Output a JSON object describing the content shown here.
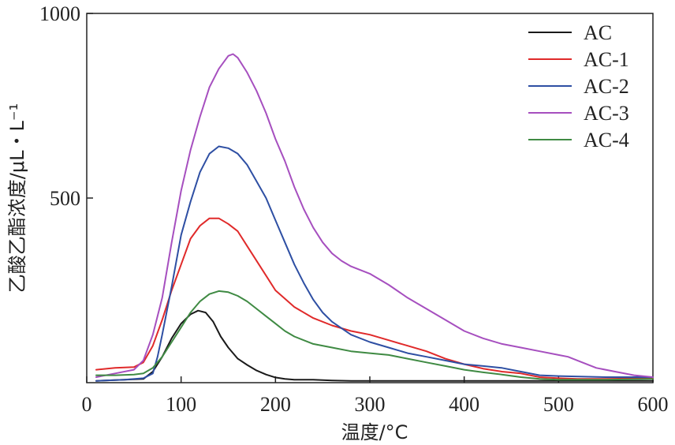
{
  "chart_data": {
    "type": "line",
    "title": "",
    "xlabel": "温度/°C",
    "ylabel": "乙酸乙酯浓度/μL・L⁻¹",
    "xlim": [
      0,
      600
    ],
    "ylim": [
      0,
      1000
    ],
    "x_ticks": [
      "0",
      "100",
      "200",
      "300",
      "400",
      "500",
      "600"
    ],
    "y_ticks": [
      "500",
      "1000"
    ],
    "grid": false,
    "legend_position": "top-right",
    "series": [
      {
        "name": "AC",
        "color": "#1a1a1a",
        "x": [
          10,
          40,
          60,
          70,
          80,
          90,
          100,
          110,
          118,
          126,
          134,
          142,
          150,
          160,
          170,
          180,
          190,
          200,
          210,
          220,
          240,
          260,
          280,
          300,
          350,
          400,
          450,
          500,
          550,
          600
        ],
        "y": [
          5,
          8,
          10,
          30,
          70,
          120,
          160,
          185,
          195,
          190,
          165,
          125,
          95,
          65,
          48,
          33,
          22,
          14,
          10,
          8,
          8,
          6,
          5,
          5,
          5,
          5,
          5,
          5,
          5,
          5
        ]
      },
      {
        "name": "AC-1",
        "color": "#e02a2a",
        "x": [
          10,
          30,
          50,
          60,
          70,
          80,
          90,
          100,
          110,
          120,
          130,
          140,
          150,
          160,
          170,
          180,
          190,
          200,
          220,
          240,
          260,
          280,
          300,
          320,
          340,
          360,
          380,
          400,
          420,
          440,
          460,
          480,
          500,
          520,
          550,
          600
        ],
        "y": [
          35,
          40,
          42,
          55,
          100,
          170,
          250,
          320,
          390,
          425,
          445,
          445,
          430,
          410,
          370,
          330,
          290,
          250,
          205,
          175,
          155,
          140,
          130,
          115,
          100,
          85,
          65,
          50,
          38,
          30,
          25,
          15,
          12,
          10,
          10,
          12
        ]
      },
      {
        "name": "AC-2",
        "color": "#2e4fa3",
        "x": [
          10,
          40,
          60,
          70,
          75,
          80,
          90,
          100,
          110,
          120,
          130,
          140,
          150,
          160,
          170,
          180,
          190,
          200,
          210,
          220,
          230,
          240,
          250,
          260,
          280,
          300,
          320,
          340,
          360,
          380,
          400,
          420,
          440,
          460,
          480,
          500,
          550,
          600
        ],
        "y": [
          5,
          8,
          12,
          25,
          70,
          130,
          260,
          400,
          490,
          570,
          620,
          640,
          635,
          620,
          590,
          545,
          500,
          440,
          380,
          320,
          270,
          225,
          190,
          165,
          130,
          110,
          95,
          80,
          70,
          60,
          50,
          45,
          40,
          30,
          20,
          18,
          15,
          15
        ]
      },
      {
        "name": "AC-3",
        "color": "#a64fbf",
        "x": [
          10,
          30,
          50,
          60,
          70,
          80,
          90,
          100,
          110,
          120,
          130,
          140,
          150,
          155,
          160,
          170,
          180,
          190,
          200,
          210,
          220,
          230,
          240,
          250,
          260,
          270,
          280,
          300,
          320,
          340,
          360,
          380,
          400,
          420,
          440,
          460,
          480,
          500,
          510,
          520,
          540,
          560,
          580,
          600
        ],
        "y": [
          15,
          25,
          35,
          60,
          130,
          230,
          380,
          520,
          630,
          720,
          800,
          850,
          885,
          890,
          880,
          840,
          790,
          730,
          660,
          600,
          530,
          470,
          420,
          380,
          350,
          330,
          315,
          295,
          265,
          230,
          200,
          170,
          140,
          120,
          105,
          95,
          85,
          75,
          70,
          60,
          40,
          30,
          20,
          15
        ]
      },
      {
        "name": "AC-4",
        "color": "#3f8a43",
        "x": [
          10,
          30,
          50,
          60,
          70,
          80,
          90,
          100,
          110,
          120,
          130,
          140,
          150,
          160,
          170,
          180,
          190,
          200,
          210,
          220,
          240,
          260,
          280,
          300,
          320,
          340,
          360,
          380,
          400,
          420,
          440,
          460,
          480,
          500,
          520,
          550,
          600
        ],
        "y": [
          20,
          20,
          22,
          25,
          40,
          70,
          110,
          150,
          190,
          220,
          240,
          248,
          245,
          235,
          220,
          200,
          180,
          160,
          140,
          125,
          105,
          95,
          85,
          80,
          75,
          65,
          55,
          45,
          35,
          28,
          22,
          15,
          10,
          8,
          8,
          8,
          10
        ]
      }
    ]
  }
}
